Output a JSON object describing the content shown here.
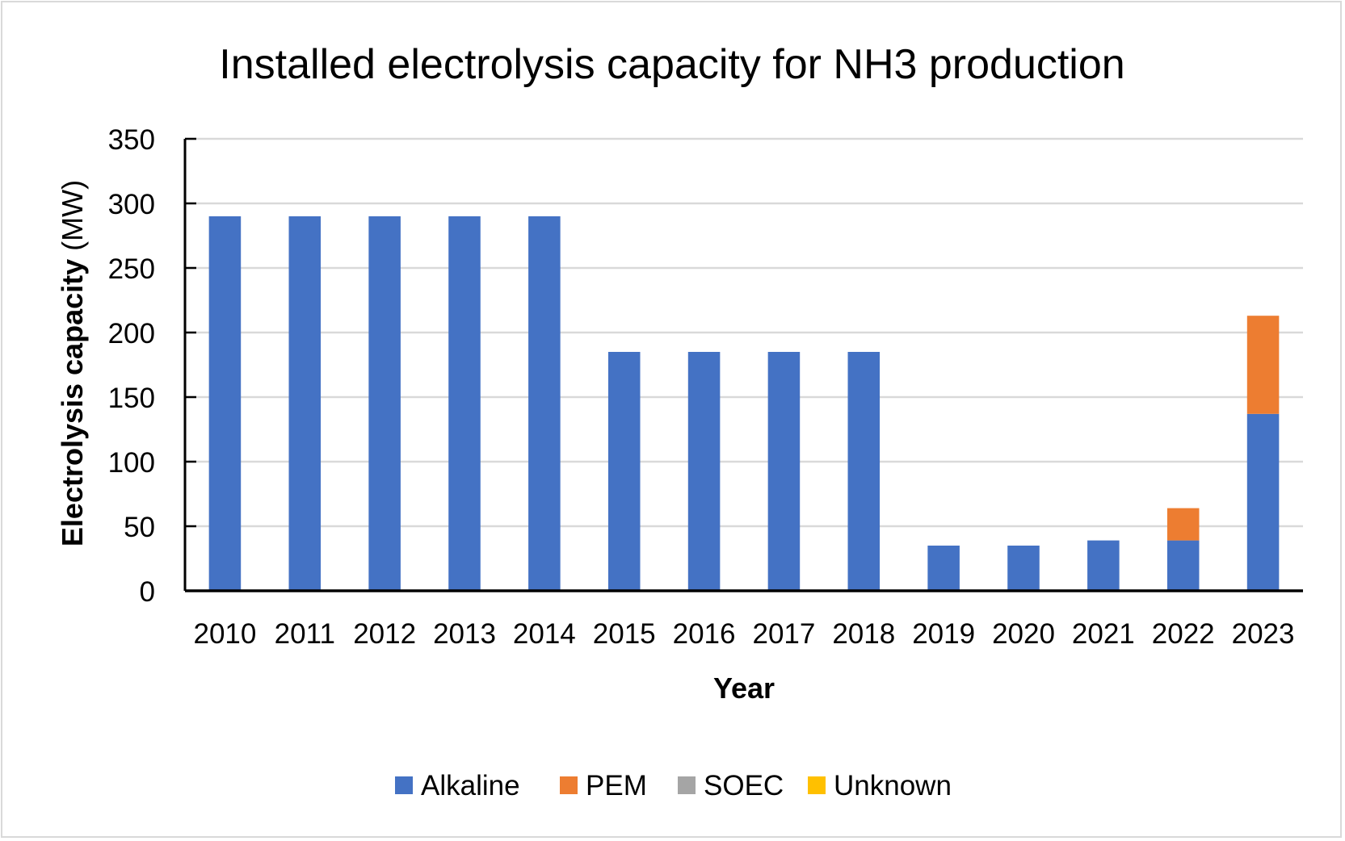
{
  "chart_data": {
    "type": "bar",
    "stacked": true,
    "title": "Installed electrolysis capacity for NH3 production",
    "xlabel": "Year",
    "ylabel_bold": "Electrolysis capacity",
    "ylabel_unit": " (MW)",
    "ylim": [
      0,
      350
    ],
    "yticks": [
      0,
      50,
      100,
      150,
      200,
      250,
      300,
      350
    ],
    "grid": true,
    "legend_position": "bottom",
    "categories": [
      "2010",
      "2011",
      "2012",
      "2013",
      "2014",
      "2015",
      "2016",
      "2017",
      "2018",
      "2019",
      "2020",
      "2021",
      "2022",
      "2023"
    ],
    "series": [
      {
        "name": "Alkaline",
        "color": "#4472c4",
        "values": [
          290,
          290,
          290,
          290,
          290,
          185,
          185,
          185,
          185,
          35,
          35,
          39,
          39,
          137
        ]
      },
      {
        "name": "PEM",
        "color": "#ed7d31",
        "values": [
          0,
          0,
          0,
          0,
          0,
          0,
          0,
          0,
          0,
          0,
          0,
          0,
          25,
          76
        ]
      },
      {
        "name": "SOEC",
        "color": "#a5a5a5",
        "values": [
          0,
          0,
          0,
          0,
          0,
          0,
          0,
          0,
          0,
          0,
          0,
          0,
          0,
          0
        ]
      },
      {
        "name": "Unknown",
        "color": "#ffc000",
        "values": [
          0,
          0,
          0,
          0,
          0,
          0,
          0,
          0,
          0,
          0,
          0,
          0,
          0,
          0
        ]
      }
    ]
  }
}
